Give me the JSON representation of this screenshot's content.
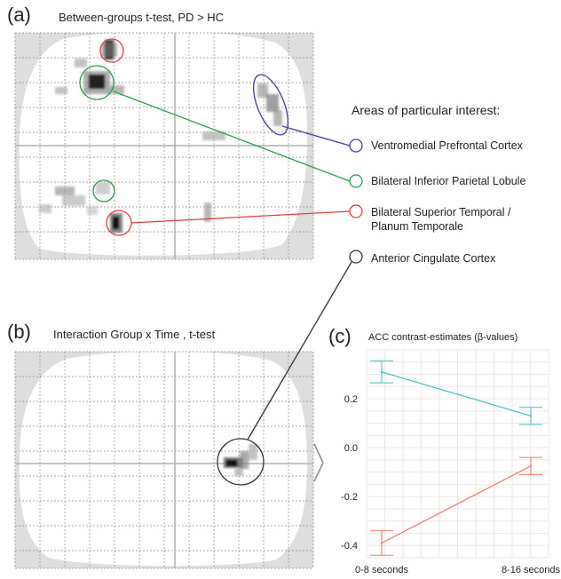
{
  "panel_a": {
    "label": "(a)",
    "title": "Between-groups t-test, PD > HC"
  },
  "panel_b": {
    "label": "(b)",
    "title": "Interaction Group x Time , t-test"
  },
  "panel_c": {
    "label": "(c)"
  },
  "legend": {
    "title": "Areas of particular interest:",
    "items": [
      {
        "label": "Ventromedial Prefrontal Cortex",
        "color": "#3b3f9a"
      },
      {
        "label": "Bilateral Inferior Parietal Lobule",
        "color": "#2aa048"
      },
      {
        "label": "Bilateral Superior Temporal /",
        "label2": "Planum Temporale",
        "color": "#e0403a"
      },
      {
        "label": "Anterior Cingulate Cortex",
        "color": "#333333"
      }
    ]
  },
  "colors": {
    "blue": "#3b3f9a",
    "green": "#2aa048",
    "red": "#e0403a",
    "black": "#333333",
    "series_hc": "#3cc0c0",
    "series_pd": "#ee7466"
  },
  "chart_data": {
    "type": "line",
    "title": "ACC contrast-estimates (β-values)",
    "categories": [
      "0-8 seconds",
      "8-16 seconds"
    ],
    "ylim": [
      -0.45,
      0.4
    ],
    "yticks": [
      "0.2",
      "0.0",
      "-0.2",
      "-0.4"
    ],
    "series": [
      {
        "values": [
          0.31,
          0.13
        ],
        "errors": [
          0.045,
          0.035
        ],
        "color": "#3cc0c0"
      },
      {
        "values": [
          -0.39,
          -0.075
        ],
        "errors": [
          0.05,
          0.035
        ],
        "color": "#ee7466"
      }
    ]
  }
}
